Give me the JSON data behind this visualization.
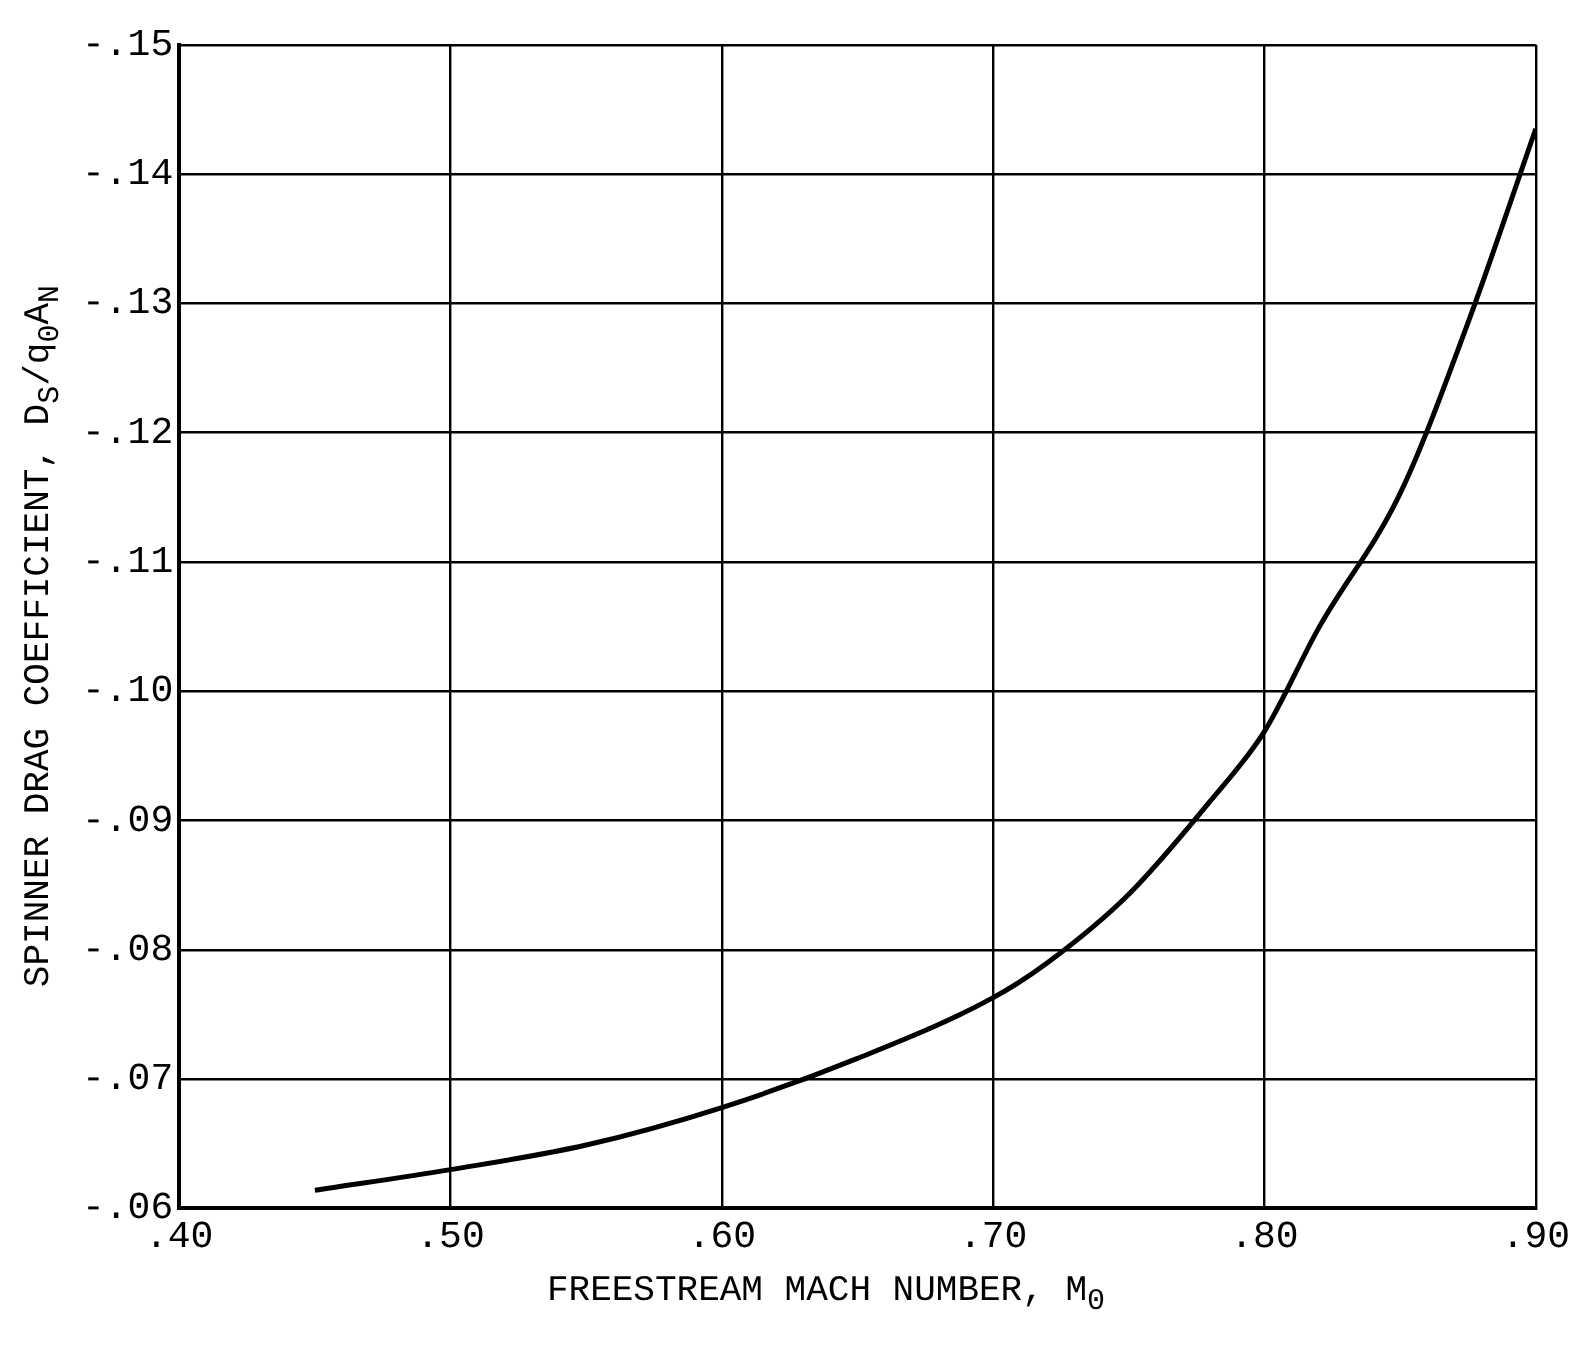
{
  "chart_data": {
    "type": "line",
    "xlabel": "FREESTREAM MACH NUMBER, M$_{0}$",
    "ylabel": "SPINNER DRAG COEFFICIENT, D$_{S}$/q$_{0}$A$_{N}$",
    "x": [
      0.45,
      0.5,
      0.55,
      0.6,
      0.65,
      0.7,
      0.72,
      0.75,
      0.78,
      0.8,
      0.82,
      0.85,
      0.875,
      0.9
    ],
    "series": [
      {
        "color": "#000000",
        "values": [
          -0.0614,
          -0.063,
          -0.0649,
          -0.0678,
          -0.0716,
          -0.0763,
          -0.079,
          -0.0843,
          -0.0915,
          -0.0969,
          -0.1049,
          -0.1153,
          -0.1285,
          -0.1435
        ]
      }
    ],
    "xlim": [
      0.4,
      0.9
    ],
    "ylim": [
      -0.06,
      -0.15
    ],
    "xticks": [
      {
        "value": 0.4,
        "label": ".40"
      },
      {
        "value": 0.5,
        "label": ".50"
      },
      {
        "value": 0.6,
        "label": ".60"
      },
      {
        "value": 0.7,
        "label": ".70"
      },
      {
        "value": 0.8,
        "label": ".80"
      },
      {
        "value": 0.9,
        "label": ".90"
      }
    ],
    "yticks": [
      {
        "value": -0.06,
        "label": "-.06"
      },
      {
        "value": -0.07,
        "label": "-.07"
      },
      {
        "value": -0.08,
        "label": "-.08"
      },
      {
        "value": -0.09,
        "label": "-.09"
      },
      {
        "value": -0.1,
        "label": "-.10"
      },
      {
        "value": -0.11,
        "label": "-.11"
      },
      {
        "value": -0.12,
        "label": "-.12"
      },
      {
        "value": -0.13,
        "label": "-.13"
      },
      {
        "value": -0.14,
        "label": "-.14"
      },
      {
        "value": -0.15,
        "label": "-.15"
      }
    ],
    "grid": true,
    "legend": false,
    "marker": "none",
    "line_style": "solid"
  }
}
